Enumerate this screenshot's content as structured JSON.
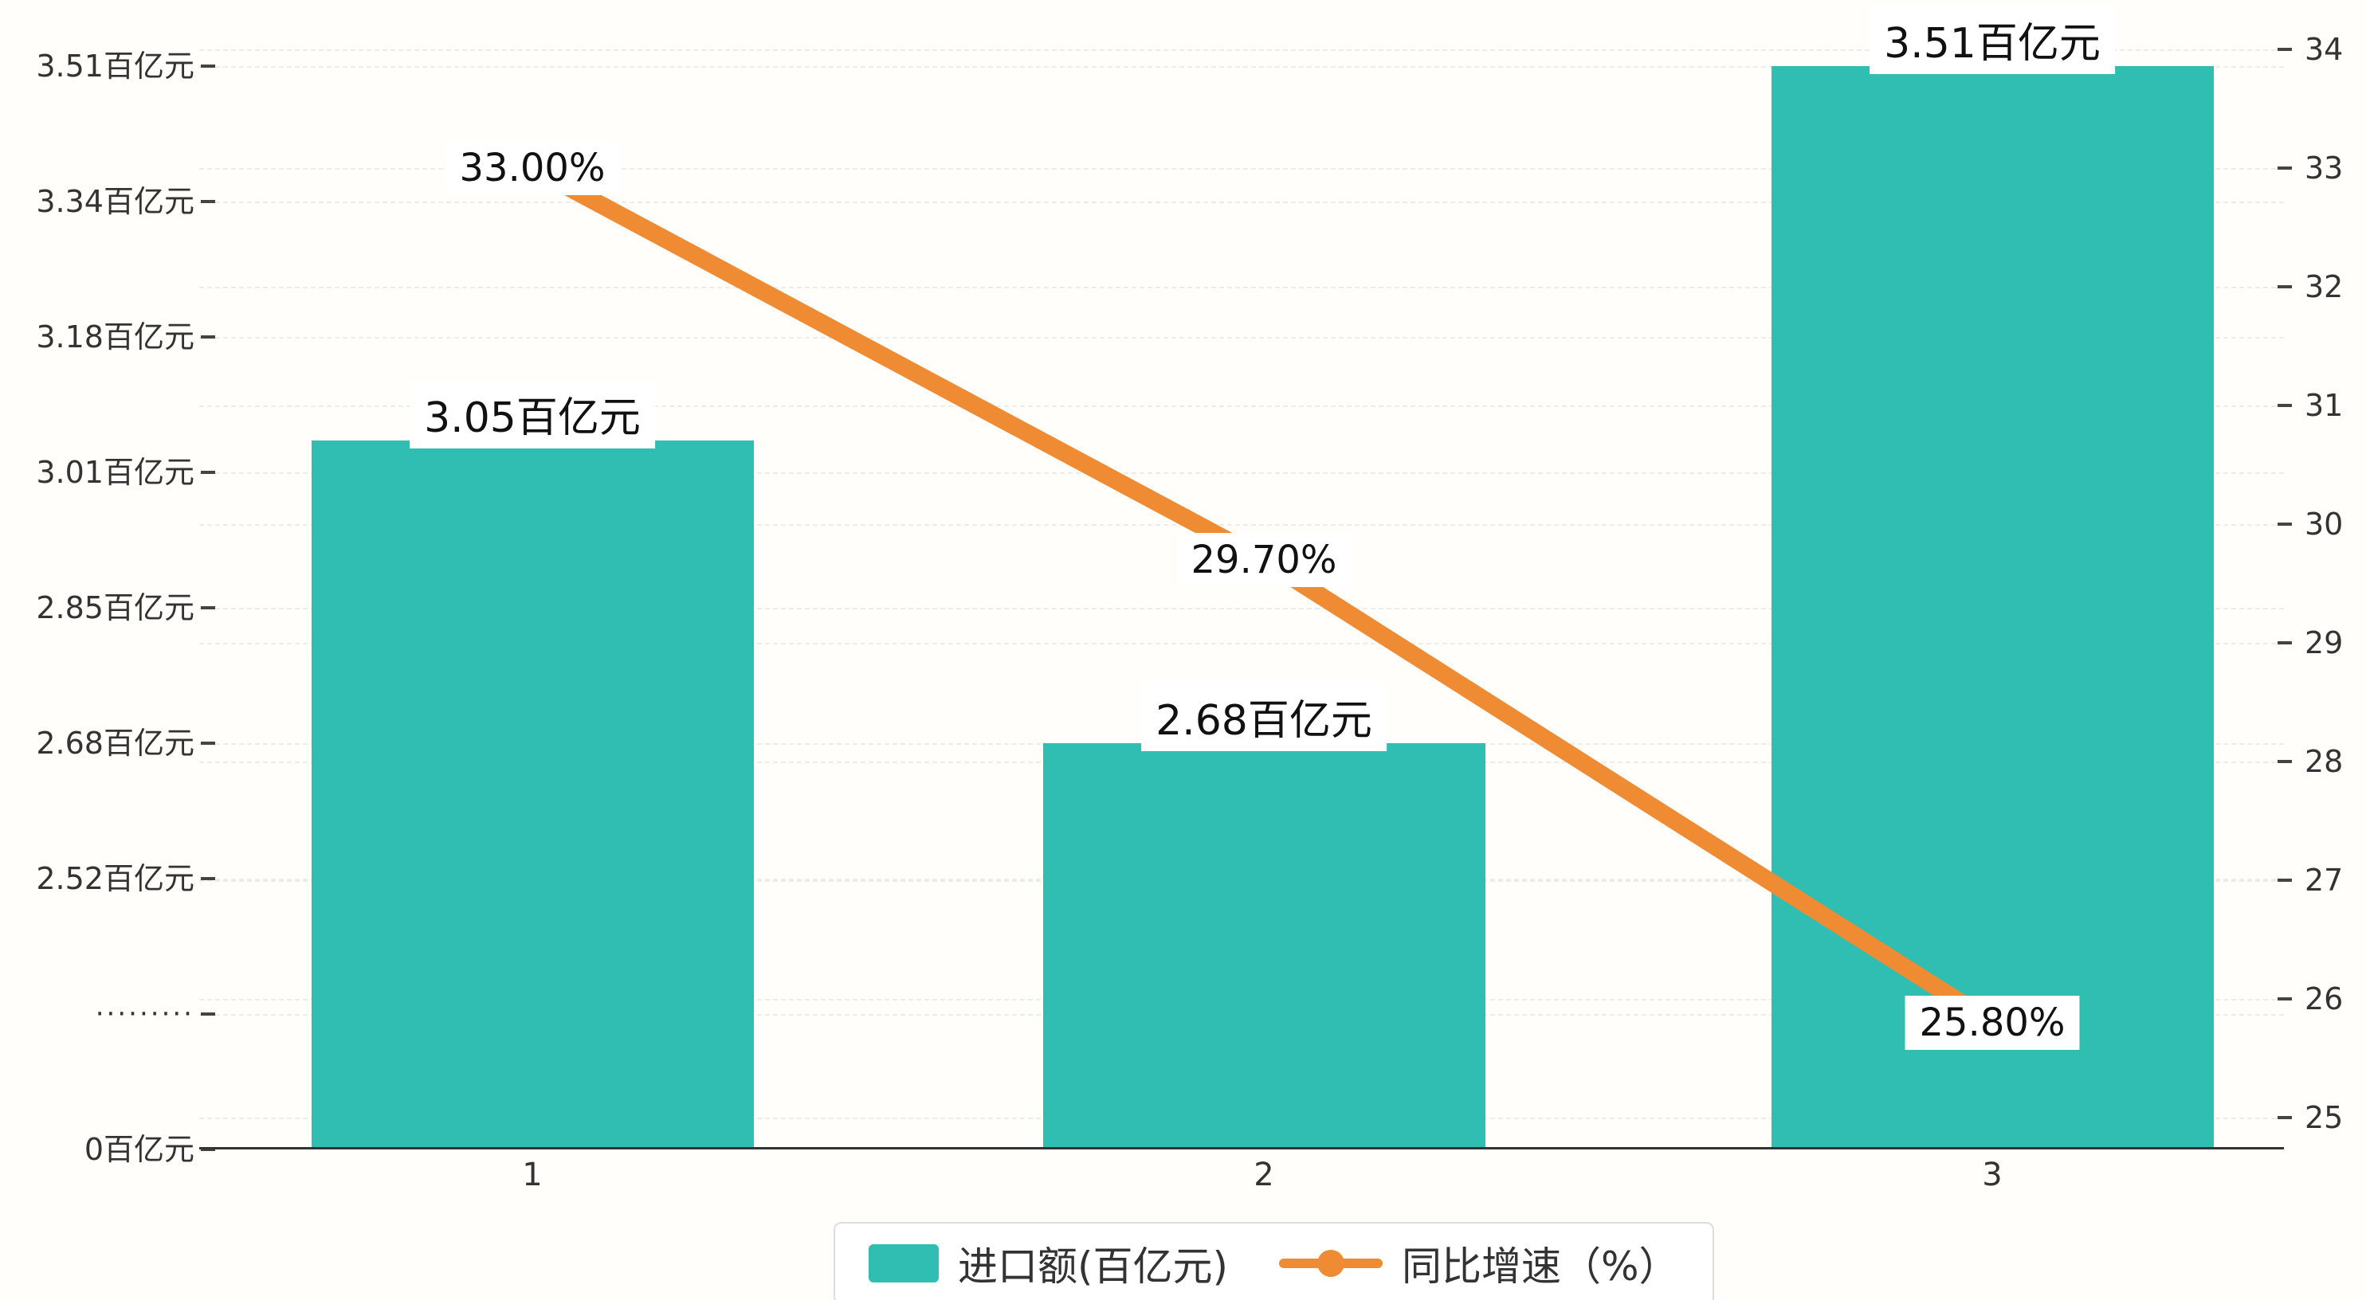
{
  "chart_data": {
    "type": "bar",
    "title": "",
    "categories": [
      "1",
      "2",
      "3"
    ],
    "series": [
      {
        "name": "进口额(百亿元)",
        "chart_type": "bar",
        "axis": "left",
        "color": "#2FBEB1",
        "values": [
          3.05,
          2.68,
          3.51
        ],
        "value_labels": [
          "3.05百亿元",
          "2.68百亿元",
          "3.51百亿元"
        ]
      },
      {
        "name": "同比增速（%）",
        "chart_type": "line",
        "axis": "right",
        "color": "#EF8B33",
        "values": [
          33.0,
          29.7,
          25.8
        ],
        "value_labels": [
          "33.00%",
          "29.70%",
          "25.80%"
        ]
      }
    ],
    "left_axis": {
      "tick_labels": [
        "3.51百亿元",
        "3.34百亿元",
        "3.18百亿元",
        "3.01百亿元",
        "2.85百亿元",
        "2.68百亿元",
        "2.52百亿元",
        "·········",
        "0百亿元"
      ],
      "tick_values": [
        3.51,
        3.34,
        3.18,
        3.01,
        2.85,
        2.68,
        2.52,
        null,
        0
      ],
      "has_break": true
    },
    "right_axis": {
      "min": 25,
      "max": 34,
      "step": 1,
      "tick_labels": [
        "34",
        "33",
        "32",
        "31",
        "30",
        "29",
        "28",
        "27",
        "26",
        "25"
      ]
    },
    "legend_position": "bottom",
    "grid": true,
    "colors": {
      "bar": "#2FBEB1",
      "line": "#EF8B33",
      "axis_text": "#333333",
      "gridline": "#ececec",
      "label_bg": "#ffffff"
    }
  }
}
